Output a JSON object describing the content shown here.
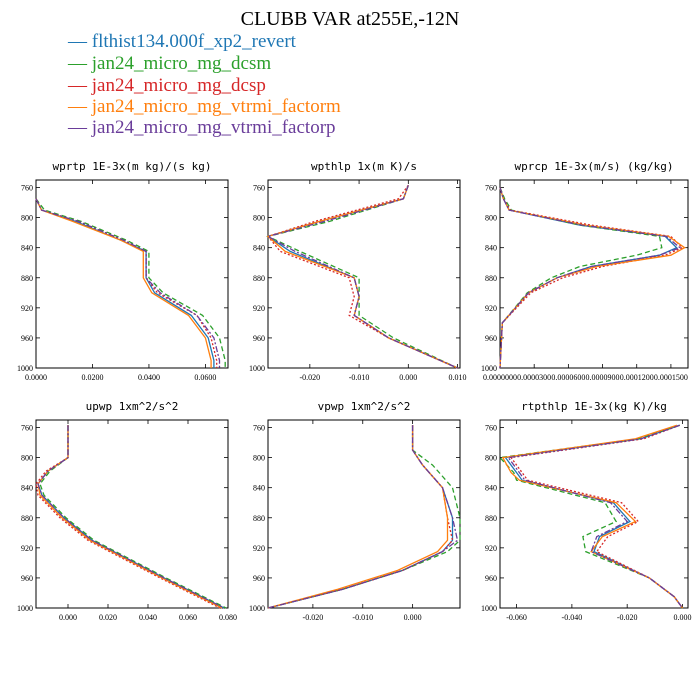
{
  "title": "CLUBB VAR at255E,-12N",
  "legend": [
    {
      "name": "flthist134.000f_xp2_revert",
      "color": "#1f77b4",
      "dash": "solid"
    },
    {
      "name": "jan24_micro_mg_dcsm",
      "color": "#2ca02c",
      "dash": "dash"
    },
    {
      "name": "jan24_micro_mg_dcsp",
      "color": "#d62728",
      "dash": "dot"
    },
    {
      "name": "jan24_micro_mg_vtrmi_factorm",
      "color": "#ff7f0e",
      "dash": "solid"
    },
    {
      "name": "jan24_micro_mg_vtrmi_factorp",
      "color": "#6a3d9a",
      "dash": "dashdot"
    }
  ],
  "chart_data": [
    {
      "type": "line",
      "title": "wprtp  1E-3x(m kg)/(s kg)",
      "ylim": [
        1000,
        750
      ],
      "yticks": [
        "760",
        "800",
        "840",
        "880",
        "920",
        "960",
        "1000"
      ],
      "xlim": [
        0.0,
        0.068
      ],
      "xticks": [
        {
          "v": 0.0,
          "label": "0.0000"
        },
        {
          "v": 0.02,
          "label": "0.0200"
        },
        {
          "v": 0.04,
          "label": "0.0400"
        },
        {
          "v": 0.06,
          "label": "0.0600"
        }
      ],
      "y": [
        775,
        790,
        805,
        830,
        845,
        880,
        900,
        930,
        960,
        990,
        1000
      ],
      "series": [
        {
          "values": [
            0.0,
            0.002,
            0.014,
            0.03,
            0.039,
            0.039,
            0.042,
            0.055,
            0.061,
            0.063,
            0.063
          ]
        },
        {
          "values": [
            0.0,
            0.003,
            0.016,
            0.032,
            0.04,
            0.04,
            0.045,
            0.059,
            0.065,
            0.067,
            0.067
          ]
        },
        {
          "values": [
            0.0,
            0.002,
            0.015,
            0.031,
            0.039,
            0.039,
            0.043,
            0.057,
            0.062,
            0.064,
            0.064
          ]
        },
        {
          "values": [
            0.0,
            0.002,
            0.013,
            0.03,
            0.038,
            0.038,
            0.041,
            0.054,
            0.06,
            0.062,
            0.062
          ]
        },
        {
          "values": [
            0.0,
            0.002,
            0.015,
            0.031,
            0.039,
            0.039,
            0.044,
            0.057,
            0.063,
            0.065,
            0.065
          ]
        }
      ]
    },
    {
      "type": "line",
      "title": "wpthlp  1x(m K)/s",
      "ylim": [
        1000,
        750
      ],
      "yticks": [
        "760",
        "800",
        "840",
        "880",
        "920",
        "960",
        "1000"
      ],
      "xlim": [
        -0.0285,
        0.0105
      ],
      "xticks": [
        {
          "v": -0.02,
          "label": "-0.020"
        },
        {
          "v": -0.01,
          "label": "-0.010"
        },
        {
          "v": 0.0,
          "label": "0.000"
        },
        {
          "v": 0.01,
          "label": "0.010"
        }
      ],
      "y": [
        757,
        775,
        805,
        825,
        845,
        880,
        905,
        930,
        960,
        1000
      ],
      "series": [
        {
          "values": [
            0.0,
            -0.001,
            -0.018,
            -0.0285,
            -0.024,
            -0.011,
            -0.01,
            -0.011,
            -0.004,
            0.01
          ]
        },
        {
          "values": [
            0.0,
            -0.001,
            -0.016,
            -0.0285,
            -0.022,
            -0.01,
            -0.01,
            -0.01,
            -0.003,
            0.01
          ]
        },
        {
          "values": [
            0.0,
            -0.002,
            -0.019,
            -0.0285,
            -0.026,
            -0.012,
            -0.011,
            -0.012,
            -0.004,
            0.01
          ]
        },
        {
          "values": [
            0.0,
            -0.001,
            -0.018,
            -0.0285,
            -0.025,
            -0.011,
            -0.01,
            -0.011,
            -0.004,
            0.01
          ]
        },
        {
          "values": [
            0.0,
            -0.001,
            -0.017,
            -0.0285,
            -0.023,
            -0.011,
            -0.01,
            -0.011,
            -0.004,
            0.01
          ]
        }
      ]
    },
    {
      "type": "line",
      "title": "wprcp  1E-3x(m/s) (kg/kg)",
      "ylim": [
        1000,
        750
      ],
      "yticks": [
        "760",
        "800",
        "840",
        "880",
        "920",
        "960",
        "1000"
      ],
      "xlim": [
        0.0,
        0.000165
      ],
      "xticks": [
        {
          "v": 0.0,
          "label": "0.0000000"
        },
        {
          "v": 3e-05,
          "label": "0.0000300"
        },
        {
          "v": 6e-05,
          "label": "0.0000600"
        },
        {
          "v": 9e-05,
          "label": "0.0000900"
        },
        {
          "v": 0.00012,
          "label": "0.0001200"
        },
        {
          "v": 0.00015,
          "label": "0.0001500"
        }
      ],
      "y": [
        760,
        775,
        790,
        810,
        825,
        840,
        850,
        865,
        880,
        900,
        940,
        1000
      ],
      "series": [
        {
          "values": [
            0.0,
            3e-06,
            8e-06,
            7e-05,
            0.000145,
            0.000155,
            0.00014,
            8e-05,
            5e-05,
            2.5e-05,
            2e-06,
            0.0
          ]
        },
        {
          "values": [
            0.0,
            4e-06,
            1e-05,
            7e-05,
            0.00014,
            0.000142,
            0.00012,
            7e-05,
            4.5e-05,
            2.4e-05,
            2e-06,
            0.0
          ]
        },
        {
          "values": [
            0.0,
            3e-06,
            9e-06,
            8e-05,
            0.00015,
            0.00016,
            0.000145,
            9e-05,
            5.5e-05,
            2.7e-05,
            2e-06,
            0.0
          ]
        },
        {
          "values": [
            0.0,
            3e-06,
            8e-06,
            7.5e-05,
            0.000148,
            0.000162,
            0.00015,
            8.5e-05,
            5e-05,
            2.5e-05,
            2e-06,
            0.0
          ]
        },
        {
          "values": [
            0.0,
            3e-06,
            8e-06,
            7.2e-05,
            0.000146,
            0.000158,
            0.00014,
            8e-05,
            5e-05,
            2.5e-05,
            2e-06,
            0.0
          ]
        }
      ]
    },
    {
      "type": "line",
      "title": "upwp  1xm^2/s^2",
      "ylim": [
        1000,
        750
      ],
      "yticks": [
        "760",
        "800",
        "840",
        "880",
        "920",
        "960",
        "1000"
      ],
      "xlim": [
        -0.016,
        0.08
      ],
      "xticks": [
        {
          "v": 0.0,
          "label": "0.000"
        },
        {
          "v": 0.02,
          "label": "0.020"
        },
        {
          "v": 0.04,
          "label": "0.040"
        },
        {
          "v": 0.06,
          "label": "0.060"
        },
        {
          "v": 0.08,
          "label": "0.080"
        }
      ],
      "y": [
        757,
        800,
        818,
        835,
        850,
        880,
        910,
        935,
        960,
        1000
      ],
      "series": [
        {
          "values": [
            0.0,
            0.0,
            -0.01,
            -0.015,
            -0.013,
            -0.002,
            0.012,
            0.03,
            0.048,
            0.078
          ]
        },
        {
          "values": [
            0.0,
            0.0,
            -0.009,
            -0.014,
            -0.012,
            -0.001,
            0.013,
            0.031,
            0.049,
            0.079
          ]
        },
        {
          "values": [
            0.0,
            0.0,
            -0.011,
            -0.016,
            -0.015,
            -0.004,
            0.01,
            0.028,
            0.046,
            0.076
          ]
        },
        {
          "values": [
            0.0,
            0.0,
            -0.01,
            -0.015,
            -0.014,
            -0.003,
            0.011,
            0.029,
            0.047,
            0.077
          ]
        },
        {
          "values": [
            0.0,
            0.0,
            -0.01,
            -0.015,
            -0.013,
            -0.002,
            0.012,
            0.03,
            0.048,
            0.078
          ]
        }
      ]
    },
    {
      "type": "line",
      "title": "vpwp  1xm^2/s^2",
      "ylim": [
        1000,
        750
      ],
      "yticks": [
        "760",
        "800",
        "840",
        "880",
        "920",
        "960",
        "1000"
      ],
      "xlim": [
        -0.029,
        0.0095
      ],
      "xticks": [
        {
          "v": -0.02,
          "label": "-0.020"
        },
        {
          "v": -0.01,
          "label": "-0.010"
        },
        {
          "v": 0.0,
          "label": "0.000"
        }
      ],
      "y": [
        757,
        790,
        810,
        840,
        880,
        910,
        925,
        950,
        975,
        1000
      ],
      "series": [
        {
          "values": [
            0.0,
            0.0,
            0.002,
            0.006,
            0.008,
            0.008,
            0.006,
            -0.002,
            -0.014,
            -0.029
          ]
        },
        {
          "values": [
            0.0,
            0.0,
            0.004,
            0.008,
            0.0095,
            0.0095,
            0.007,
            -0.002,
            -0.014,
            -0.029
          ]
        },
        {
          "values": [
            0.0,
            0.0,
            0.002,
            0.006,
            0.007,
            0.008,
            0.006,
            -0.002,
            -0.014,
            -0.029
          ]
        },
        {
          "values": [
            0.0,
            0.0,
            0.002,
            0.006,
            0.007,
            0.007,
            0.005,
            -0.003,
            -0.015,
            -0.029
          ]
        },
        {
          "values": [
            0.0,
            0.0,
            0.002,
            0.006,
            0.008,
            0.009,
            0.006,
            -0.002,
            -0.014,
            -0.029
          ]
        }
      ]
    },
    {
      "type": "line",
      "title": "rtpthlp  1E-3x(kg K)/kg",
      "ylim": [
        1000,
        750
      ],
      "yticks": [
        "760",
        "800",
        "840",
        "880",
        "920",
        "960",
        "1000"
      ],
      "xlim": [
        -0.066,
        0.002
      ],
      "xticks": [
        {
          "v": -0.06,
          "label": "-0.060"
        },
        {
          "v": -0.04,
          "label": "-0.040"
        },
        {
          "v": -0.02,
          "label": "-0.020"
        },
        {
          "v": 0.0,
          "label": "0.000"
        }
      ],
      "y": [
        757,
        775,
        800,
        820,
        830,
        860,
        885,
        905,
        925,
        960,
        985,
        1000
      ],
      "series": [
        {
          "values": [
            -0.001,
            -0.015,
            -0.064,
            -0.06,
            -0.058,
            -0.025,
            -0.019,
            -0.03,
            -0.032,
            -0.012,
            -0.003,
            0.0
          ]
        },
        {
          "values": [
            -0.001,
            -0.016,
            -0.066,
            -0.061,
            -0.06,
            -0.028,
            -0.024,
            -0.036,
            -0.035,
            -0.012,
            -0.003,
            0.0
          ]
        },
        {
          "values": [
            -0.001,
            -0.014,
            -0.062,
            -0.058,
            -0.056,
            -0.022,
            -0.016,
            -0.027,
            -0.031,
            -0.012,
            -0.003,
            0.0
          ]
        },
        {
          "values": [
            -0.002,
            -0.017,
            -0.065,
            -0.062,
            -0.059,
            -0.024,
            -0.017,
            -0.029,
            -0.033,
            -0.012,
            -0.003,
            0.0
          ]
        },
        {
          "values": [
            -0.001,
            -0.015,
            -0.063,
            -0.059,
            -0.057,
            -0.026,
            -0.02,
            -0.031,
            -0.033,
            -0.012,
            -0.003,
            0.0
          ]
        }
      ]
    }
  ]
}
